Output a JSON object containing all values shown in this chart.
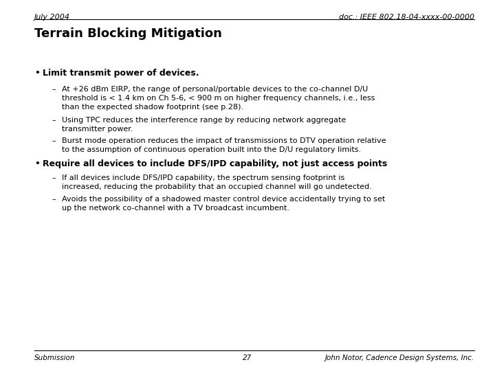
{
  "header_left": "July 2004",
  "header_right": "doc.: IEEE 802.18-04-xxxx-00-0000",
  "title": "Terrain Blocking Mitigation",
  "footer_left": "Submission",
  "footer_center": "27",
  "footer_right": "John Notor, Cadence Design Systems, Inc.",
  "bg_color": "#ffffff",
  "text_color": "#000000",
  "bullet1_bold": "Limit transmit power of devices.",
  "sub1a_line1": "At +26 dBm EIRP, the range of personal/portable devices to the co-channel D/U",
  "sub1a_line2": "threshold is < 1.4 km on Ch 5-6, < 900 m on higher frequency channels, i.e., less",
  "sub1a_line3": "than the expected shadow footprint (see p.28).",
  "sub1b_line1": "Using TPC reduces the interference range by reducing network aggregate",
  "sub1b_line2": "transmitter power.",
  "sub1c_line1": "Burst mode operation reduces the impact of transmissions to DTV operation relative",
  "sub1c_line2": "to the assumption of continuous operation built into the D/U regulatory limits.",
  "bullet2_bold": "Require all devices to include DFS/IPD capability, not just access points",
  "sub2a_line1": "If all devices include DFS/IPD capability, the spectrum sensing footprint is",
  "sub2a_line2": "increased, reducing the probability that an occupied channel will go undetected.",
  "sub2b_line1": "Avoids the possibility of a shadowed master control device accidentally trying to set",
  "sub2b_line2": "up the network co-channel with a TV broadcast incumbent.",
  "header_fontsize": 8,
  "title_fontsize": 13,
  "bullet_fontsize": 9,
  "sub_fontsize": 8,
  "footer_fontsize": 7.5
}
